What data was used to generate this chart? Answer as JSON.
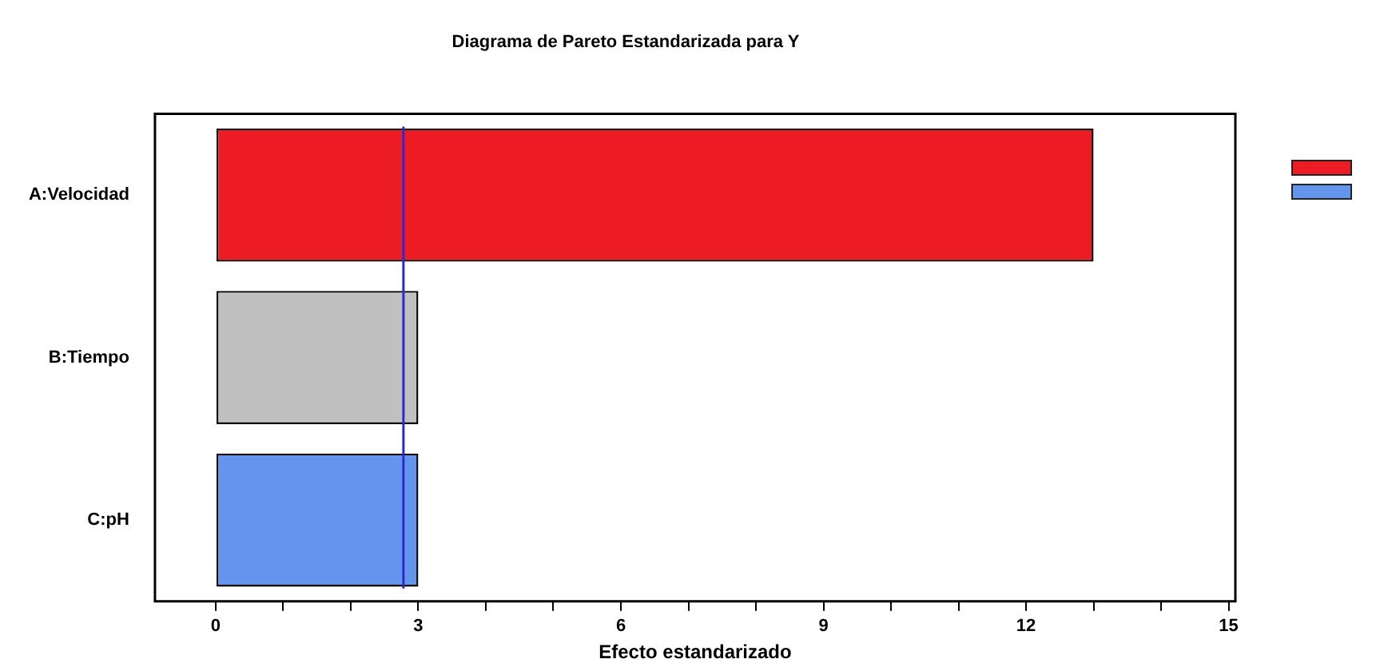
{
  "chart_data": {
    "type": "bar",
    "orientation": "horizontal",
    "title": "Diagrama de Pareto Estandarizada para Y",
    "xlabel": "Efecto estandarizado",
    "categories": [
      "A:Velocidad",
      "B:Tiempo",
      "C:pH"
    ],
    "values": [
      13.0,
      3.0,
      3.0
    ],
    "colors": [
      "#ed1c24",
      "#c0c0c0",
      "#6495ed"
    ],
    "xlim": [
      -0.9,
      15.1
    ],
    "xticks": [
      0,
      {
        "value": 1,
        "label": null
      },
      {
        "value": 2,
        "label": null
      },
      3,
      {
        "value": 4,
        "label": null
      },
      {
        "value": 5,
        "label": null
      },
      6,
      {
        "value": 7,
        "label": null
      },
      {
        "value": 8,
        "label": null
      },
      9,
      {
        "value": 10,
        "label": null
      },
      {
        "value": 11,
        "label": null
      },
      12,
      {
        "value": 13,
        "label": null
      },
      {
        "value": 14,
        "label": null
      },
      15
    ],
    "ref_lines": [
      {
        "axis": "x",
        "value": 2.78,
        "color": "#2a2ad0"
      }
    ],
    "grid": false,
    "legend": false
  }
}
